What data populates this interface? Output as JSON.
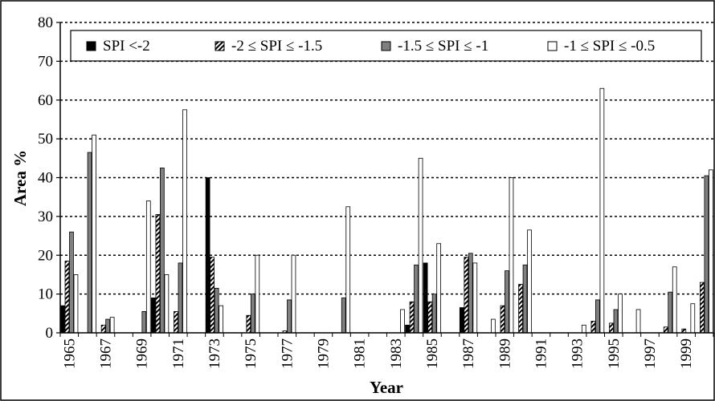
{
  "chart_data": {
    "type": "bar",
    "xlabel": "Year",
    "ylabel": "Area %",
    "ylim": [
      0,
      80
    ],
    "yticks": [
      0,
      10,
      20,
      30,
      40,
      50,
      60,
      70,
      80
    ],
    "grid": "horizontal dotted",
    "legend_position": "top",
    "categories": [
      "1965",
      "1966",
      "1967",
      "1968",
      "1969",
      "1970",
      "1971",
      "1972",
      "1973",
      "1974",
      "1975",
      "1976",
      "1977",
      "1978",
      "1979",
      "1980",
      "1981",
      "1982",
      "1983",
      "1984",
      "1985",
      "1986",
      "1987",
      "1988",
      "1989",
      "1990",
      "1991",
      "1992",
      "1993",
      "1994",
      "1995",
      "1996",
      "1997",
      "1998",
      "1999",
      "2000"
    ],
    "xtick_labels": [
      "1965",
      "1967",
      "1969",
      "1971",
      "1973",
      "1975",
      "1977",
      "1979",
      "1981",
      "1983",
      "1985",
      "1987",
      "1989",
      "1991",
      "1993",
      "1995",
      "1997",
      "1999"
    ],
    "series": [
      {
        "name": "SPI <-2",
        "style": "solid-black",
        "values": [
          7,
          0,
          0,
          0,
          0,
          9,
          0,
          0,
          40,
          0,
          0,
          0,
          0,
          0,
          0,
          0,
          0,
          0,
          0,
          2,
          18,
          0,
          6.5,
          0,
          0,
          0,
          0,
          0,
          0,
          0,
          0,
          0,
          0,
          0,
          0,
          0
        ]
      },
      {
        "name": "-2 ≤ SPI ≤ -1.5",
        "style": "hatched",
        "values": [
          18.5,
          0,
          2,
          0,
          0,
          30.5,
          5.5,
          0,
          19.5,
          0,
          4.5,
          0,
          0.5,
          0,
          0,
          0,
          0,
          0,
          0,
          8,
          8,
          0,
          19.5,
          0,
          7,
          12.5,
          0,
          0,
          0,
          3,
          2.5,
          0,
          0,
          1.5,
          1,
          13
        ]
      },
      {
        "name": "-1.5 ≤ SPI ≤ -1",
        "style": "solid-gray",
        "values": [
          26,
          46.5,
          3.5,
          0,
          5.5,
          42.5,
          18,
          0,
          11.5,
          0,
          10,
          0,
          8.5,
          0,
          0,
          9,
          0,
          0,
          0,
          17.5,
          10,
          0,
          20.5,
          0,
          16,
          17.5,
          0,
          0,
          0,
          8.5,
          6,
          0,
          0,
          10.5,
          0,
          40.5
        ]
      },
      {
        "name": "-1 ≤ SPI ≤ -0.5",
        "style": "white",
        "values": [
          15,
          51,
          4,
          0,
          34,
          15,
          57.5,
          0,
          7,
          0,
          20,
          0,
          20,
          0,
          0,
          32.5,
          0,
          0,
          6,
          45,
          23,
          0,
          18,
          3.5,
          40,
          26.5,
          0,
          0,
          2,
          63,
          10,
          6,
          0,
          17,
          7.5,
          42
        ]
      }
    ]
  }
}
